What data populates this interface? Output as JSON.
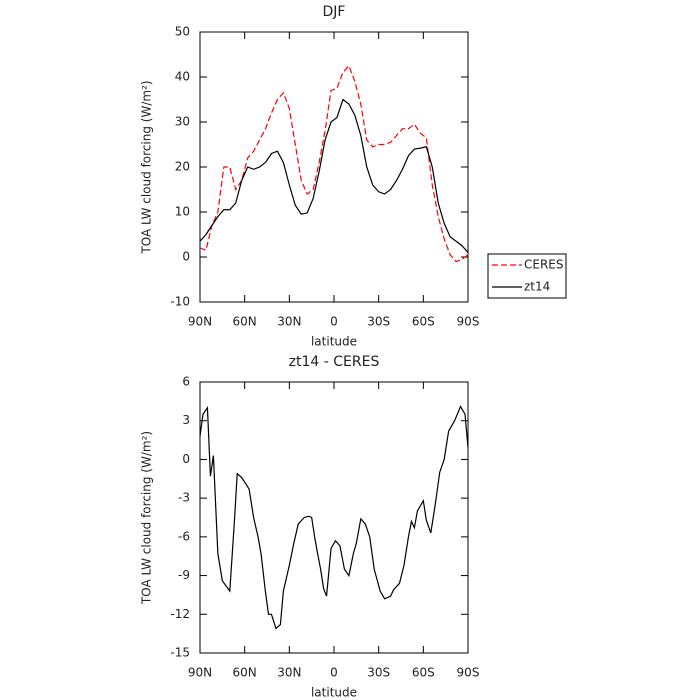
{
  "chart_data": [
    {
      "type": "line",
      "title": "DJF",
      "ylabel": "TOA LW cloud forcing (W/m²)",
      "xlabel": "latitude",
      "x": [
        90,
        86,
        82,
        78,
        74,
        70,
        66,
        62,
        58,
        54,
        50,
        46,
        42,
        38,
        34,
        30,
        26,
        22,
        18,
        14,
        10,
        6,
        2,
        -2,
        -6,
        -10,
        -14,
        -18,
        -22,
        -26,
        -30,
        -34,
        -38,
        -42,
        -46,
        -50,
        -54,
        -58,
        -62,
        -66,
        -70,
        -74,
        -78,
        -82,
        -86,
        -90
      ],
      "series": [
        {
          "name": "CERES",
          "color": "#ff0000",
          "line_style": "dashed",
          "values": [
            2,
            1.5,
            7,
            10,
            20,
            20,
            15,
            17,
            22,
            23.5,
            26,
            28.5,
            32,
            35,
            36.5,
            33,
            25,
            17,
            14,
            15,
            21,
            28,
            37,
            37.5,
            41,
            42.5,
            39,
            34,
            26,
            24.5,
            25,
            25,
            25.5,
            27,
            28.5,
            28.5,
            29.5,
            27.5,
            26.5,
            16,
            9,
            4,
            0.5,
            -1,
            -0.5,
            0.5
          ]
        },
        {
          "name": "zt14",
          "color": "#000000",
          "line_style": "solid",
          "values": [
            3.5,
            5,
            7,
            9,
            10.5,
            10.5,
            12,
            17,
            20,
            19.5,
            20,
            21,
            23,
            23.5,
            21,
            16,
            11.5,
            9.5,
            9.8,
            13,
            19,
            26,
            30,
            31,
            35,
            34,
            31.5,
            27,
            20,
            16,
            14.5,
            14,
            15,
            17,
            19.5,
            22.5,
            24,
            24.2,
            24.5,
            20,
            12,
            7.5,
            4.5,
            3.5,
            2.5,
            1
          ]
        }
      ],
      "xlim": [
        90,
        -90
      ],
      "xticks": [
        {
          "value": 90,
          "label": "90N"
        },
        {
          "value": 60,
          "label": "60N"
        },
        {
          "value": 30,
          "label": "30N"
        },
        0,
        {
          "value": -30,
          "label": "30S"
        },
        {
          "value": -60,
          "label": "60S"
        },
        {
          "value": -90,
          "label": "90S"
        }
      ],
      "ylim": [
        -10,
        50
      ],
      "yticks": [
        -10,
        0,
        10,
        20,
        30,
        40,
        50
      ],
      "legend": "outside right"
    },
    {
      "type": "line",
      "title": "zt14 - CERES",
      "ylabel": "TOA LW cloud forcing (W/m²)",
      "xlabel": "latitude",
      "x": [
        90,
        88,
        85,
        83,
        81,
        78,
        75,
        70,
        67,
        65,
        62,
        57,
        54,
        51,
        49,
        46,
        44,
        42,
        39,
        36,
        34,
        30,
        27,
        24,
        20,
        17,
        15,
        13,
        11,
        9,
        7,
        5,
        2,
        -1,
        -4,
        -7,
        -10,
        -13,
        -15,
        -18,
        -21,
        -24,
        -27,
        -31,
        -34,
        -38,
        -40,
        -44,
        -47,
        -50,
        -52,
        -54,
        -56,
        -60,
        -62,
        -65,
        -68,
        -71,
        -74,
        -77,
        -81,
        -85,
        -88,
        -90
      ],
      "series": [
        {
          "name": "zt14 - CERES",
          "color": "#000000",
          "line_style": "solid",
          "values": [
            1.8,
            3.5,
            4,
            -1.3,
            0.3,
            -7.3,
            -9.4,
            -10.2,
            -5,
            -1.1,
            -1.4,
            -2.3,
            -4.5,
            -6,
            -7.3,
            -10.3,
            -12,
            -12,
            -13.1,
            -12.8,
            -10.2,
            -8.2,
            -6.5,
            -5,
            -4.5,
            -4.4,
            -4.5,
            -6,
            -7.3,
            -8.5,
            -10,
            -10.6,
            -6.9,
            -6.3,
            -6.7,
            -8.5,
            -9,
            -7.3,
            -6.5,
            -4.6,
            -5,
            -6,
            -8.5,
            -10.2,
            -10.8,
            -10.6,
            -10.1,
            -9.6,
            -8.2,
            -6,
            -4.8,
            -5.3,
            -4,
            -3.2,
            -4.7,
            -5.7,
            -3.5,
            -1,
            0,
            2.2,
            3,
            4.1,
            3.5,
            0.9
          ]
        }
      ],
      "xlim": [
        90,
        -90
      ],
      "xticks": [
        {
          "value": 90,
          "label": "90N"
        },
        {
          "value": 60,
          "label": "60N"
        },
        {
          "value": 30,
          "label": "30N"
        },
        0,
        {
          "value": -30,
          "label": "30S"
        },
        {
          "value": -60,
          "label": "60S"
        },
        {
          "value": -90,
          "label": "90S"
        }
      ],
      "ylim": [
        -15,
        6
      ],
      "yticks": [
        -15,
        -12,
        -9,
        -6,
        -3,
        0,
        3,
        6
      ]
    }
  ]
}
